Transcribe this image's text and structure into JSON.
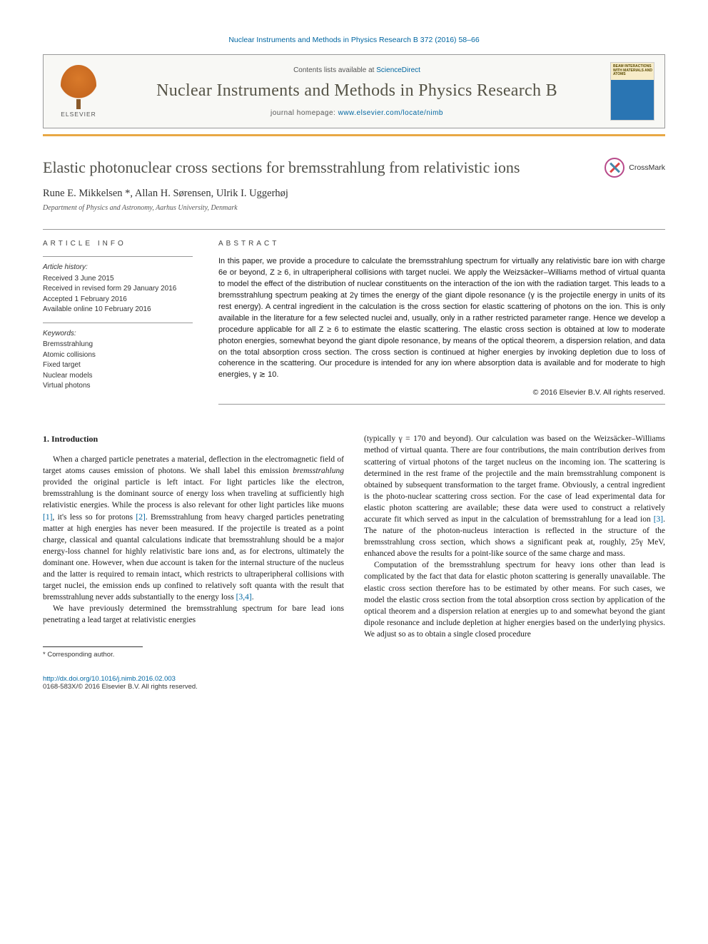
{
  "journal_ref": "Nuclear Instruments and Methods in Physics Research B 372 (2016) 58–66",
  "header": {
    "contents_prefix": "Contents lists available at ",
    "contents_link": "ScienceDirect",
    "journal_title": "Nuclear Instruments and Methods in Physics Research B",
    "homepage_prefix": "journal homepage: ",
    "homepage_link": "www.elsevier.com/locate/nimb",
    "publisher": "ELSEVIER",
    "cover_text": "BEAM INTERACTIONS WITH MATERIALS AND ATOMS"
  },
  "article": {
    "title": "Elastic photonuclear cross sections for bremsstrahlung from relativistic ions",
    "crossmark": "CrossMark",
    "authors": "Rune E. Mikkelsen *, Allan H. Sørensen, Ulrik I. Uggerhøj",
    "affiliation": "Department of Physics and Astronomy, Aarhus University, Denmark"
  },
  "info": {
    "label": "ARTICLE INFO",
    "history_label": "Article history:",
    "history": [
      "Received 3 June 2015",
      "Received in revised form 29 January 2016",
      "Accepted 1 February 2016",
      "Available online 10 February 2016"
    ],
    "keywords_label": "Keywords:",
    "keywords": [
      "Bremsstrahlung",
      "Atomic collisions",
      "Fixed target",
      "Nuclear models",
      "Virtual photons"
    ]
  },
  "abstract": {
    "label": "ABSTRACT",
    "text": "In this paper, we provide a procedure to calculate the bremsstrahlung spectrum for virtually any relativistic bare ion with charge 6e or beyond, Z ≥ 6, in ultraperipheral collisions with target nuclei. We apply the Weizsäcker–Williams method of virtual quanta to model the effect of the distribution of nuclear constituents on the interaction of the ion with the radiation target. This leads to a bremsstrahlung spectrum peaking at 2γ times the energy of the giant dipole resonance (γ is the projectile energy in units of its rest energy). A central ingredient in the calculation is the cross section for elastic scattering of photons on the ion. This is only available in the literature for a few selected nuclei and, usually, only in a rather restricted parameter range. Hence we develop a procedure applicable for all Z ≥ 6 to estimate the elastic scattering. The elastic cross section is obtained at low to moderate photon energies, somewhat beyond the giant dipole resonance, by means of the optical theorem, a dispersion relation, and data on the total absorption cross section. The cross section is continued at higher energies by invoking depletion due to loss of coherence in the scattering. Our procedure is intended for any ion where absorption data is available and for moderate to high energies, γ ≳ 10.",
    "copyright": "© 2016 Elsevier B.V. All rights reserved."
  },
  "body": {
    "section_heading": "1. Introduction",
    "col1_p1": "When a charged particle penetrates a material, deflection in the electromagnetic field of target atoms causes emission of photons. We shall label this emission bremsstrahlung provided the original particle is left intact. For light particles like the electron, bremsstrahlung is the dominant source of energy loss when traveling at sufficiently high relativistic energies. While the process is also relevant for other light particles like muons [1], it's less so for protons [2]. Bremsstrahlung from heavy charged particles penetrating matter at high energies has never been measured. If the projectile is treated as a point charge, classical and quantal calculations indicate that bremsstrahlung should be a major energy-loss channel for highly relativistic bare ions and, as for electrons, ultimately the dominant one. However, when due account is taken for the internal structure of the nucleus and the latter is required to remain intact, which restricts to ultraperipheral collisions with target nuclei, the emission ends up confined to relatively soft quanta with the result that bremsstrahlung never adds substantially to the energy loss [3,4].",
    "col1_p2": "We have previously determined the bremsstrahlung spectrum for bare lead ions penetrating a lead target at relativistic energies",
    "col2_p1": "(typically γ = 170 and beyond). Our calculation was based on the Weizsäcker–Williams method of virtual quanta. There are four contributions, the main contribution derives from scattering of virtual photons of the target nucleus on the incoming ion. The scattering is determined in the rest frame of the projectile and the main bremsstrahlung component is obtained by subsequent transformation to the target frame. Obviously, a central ingredient is the photo-nuclear scattering cross section. For the case of lead experimental data for elastic photon scattering are available; these data were used to construct a relatively accurate fit which served as input in the calculation of bremsstrahlung for a lead ion [3]. The nature of the photon-nucleus interaction is reflected in the structure of the bremsstrahlung cross section, which shows a significant peak at, roughly, 25γ MeV, enhanced above the results for a point-like source of the same charge and mass.",
    "col2_p2": "Computation of the bremsstrahlung spectrum for heavy ions other than lead is complicated by the fact that data for elastic photon scattering is generally unavailable. The elastic cross section therefore has to be estimated by other means. For such cases, we model the elastic cross section from the total absorption cross section by application of the optical theorem and a dispersion relation at energies up to and somewhat beyond the giant dipole resonance and include depletion at higher energies based on the underlying physics. We adjust so as to obtain a single closed procedure"
  },
  "footnote": {
    "corresponding": "* Corresponding author."
  },
  "footer": {
    "doi": "http://dx.doi.org/10.1016/j.nimb.2016.02.003",
    "issn_copyright": "0168-583X/© 2016 Elsevier B.V. All rights reserved."
  },
  "colors": {
    "link": "#0066a1",
    "orange_rule": "#e8a845",
    "title_gray": "#4f4f48"
  }
}
